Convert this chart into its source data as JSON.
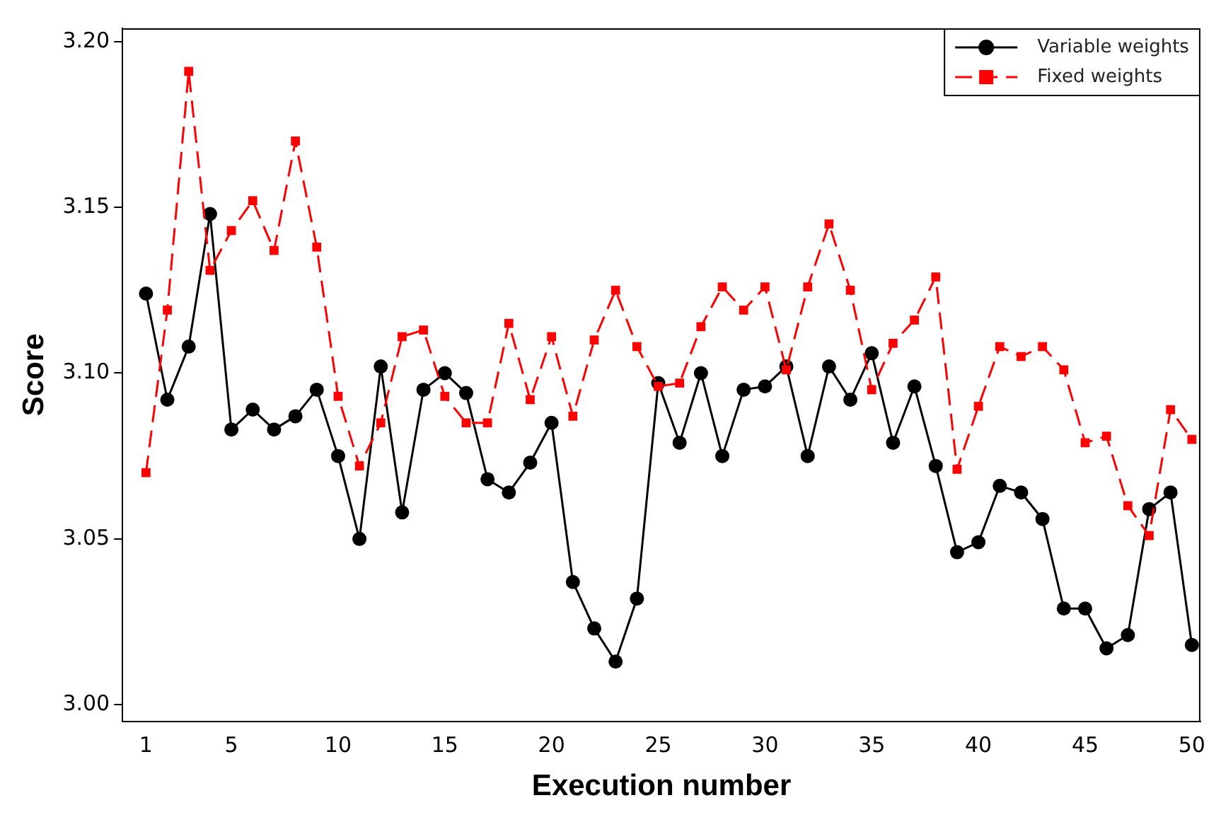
{
  "chart_data": {
    "type": "line",
    "xlabel": "Execution number",
    "ylabel": "Score",
    "x": [
      1,
      2,
      3,
      4,
      5,
      6,
      7,
      8,
      9,
      10,
      11,
      12,
      13,
      14,
      15,
      16,
      17,
      18,
      19,
      20,
      21,
      22,
      23,
      24,
      25,
      26,
      27,
      28,
      29,
      30,
      31,
      32,
      33,
      34,
      35,
      36,
      37,
      38,
      39,
      40,
      41,
      42,
      43,
      44,
      45,
      46,
      47,
      48,
      49,
      50
    ],
    "xlim": [
      -0.1,
      50.4
    ],
    "xticks": [
      1,
      5,
      10,
      15,
      20,
      25,
      30,
      35,
      40,
      45,
      50
    ],
    "ylim": [
      2.995,
      3.204
    ],
    "yticks": [
      {
        "value": 3,
        "label": "3.00"
      },
      {
        "value": 3.05,
        "label": "3.05"
      },
      {
        "value": 3.1,
        "label": "3.10"
      },
      {
        "value": 3.15,
        "label": "3.15"
      },
      {
        "value": 3.2,
        "label": "3.20"
      }
    ],
    "grid": false,
    "legend": "top right",
    "series": [
      {
        "name": "Variable weights",
        "color": "#000000",
        "marker": "circle",
        "line_style": "solid",
        "values": [
          3.124,
          3.092,
          3.108,
          3.148,
          3.083,
          3.089,
          3.083,
          3.087,
          3.095,
          3.075,
          3.05,
          3.102,
          3.058,
          3.095,
          3.1,
          3.094,
          3.068,
          3.064,
          3.073,
          3.085,
          3.037,
          3.023,
          3.013,
          3.032,
          3.097,
          3.079,
          3.1,
          3.075,
          3.095,
          3.096,
          3.102,
          3.075,
          3.102,
          3.092,
          3.106,
          3.079,
          3.096,
          3.072,
          3.046,
          3.049,
          3.066,
          3.064,
          3.056,
          3.029,
          3.029,
          3.017,
          3.021,
          3.059,
          3.064,
          3.018
        ]
      },
      {
        "name": "Fixed weights",
        "color": "#ff0000",
        "marker": "square",
        "line_style": "dashed",
        "values": [
          3.07,
          3.119,
          3.191,
          3.131,
          3.143,
          3.152,
          3.137,
          3.17,
          3.138,
          3.093,
          3.072,
          3.085,
          3.111,
          3.113,
          3.093,
          3.085,
          3.085,
          3.115,
          3.092,
          3.111,
          3.087,
          3.11,
          3.125,
          3.108,
          3.096,
          3.097,
          3.114,
          3.126,
          3.119,
          3.126,
          3.101,
          3.126,
          3.145,
          3.125,
          3.095,
          3.109,
          3.116,
          3.129,
          3.071,
          3.09,
          3.108,
          3.105,
          3.108,
          3.101,
          3.079,
          3.081,
          3.06,
          3.051,
          3.089,
          3.08
        ]
      }
    ]
  }
}
